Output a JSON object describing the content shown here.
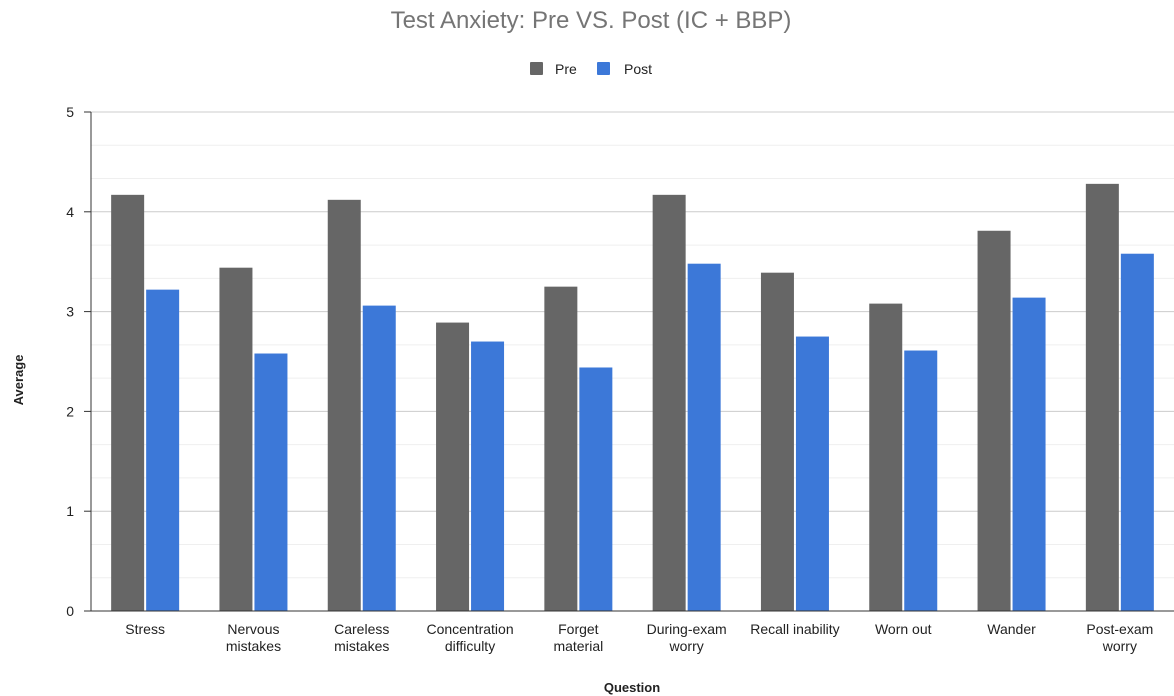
{
  "chart_data": {
    "type": "bar",
    "title": "Test Anxiety: Pre VS. Post (IC + BBP)",
    "xlabel": "Question",
    "ylabel": "Average",
    "ylim": [
      0,
      5
    ],
    "yticks": [
      0,
      1,
      2,
      3,
      4,
      5
    ],
    "grid": true,
    "legend_position": "top",
    "categories": [
      [
        "Stress"
      ],
      [
        "Nervous",
        "mistakes"
      ],
      [
        "Careless",
        "mistakes"
      ],
      [
        "Concentration",
        "difficulty"
      ],
      [
        "Forget",
        "material"
      ],
      [
        "During-exam",
        "worry"
      ],
      [
        "Recall inability"
      ],
      [
        "Worn out"
      ],
      [
        "Wander"
      ],
      [
        "Post-exam",
        "worry"
      ]
    ],
    "series": [
      {
        "name": "Pre",
        "color": "#666666",
        "values": [
          4.17,
          3.44,
          4.12,
          2.89,
          3.25,
          4.17,
          3.39,
          3.08,
          3.81,
          4.28
        ]
      },
      {
        "name": "Post",
        "color": "#3c78d8",
        "values": [
          3.22,
          2.58,
          3.06,
          2.7,
          2.44,
          3.48,
          2.75,
          2.61,
          3.14,
          3.58
        ]
      }
    ]
  }
}
